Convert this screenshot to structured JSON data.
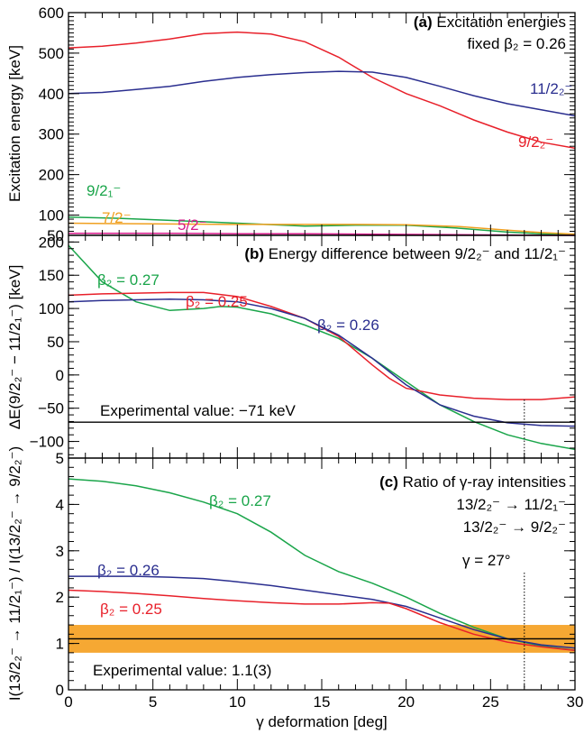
{
  "colors": {
    "red": "#e8202a",
    "blue": "#2a2e8f",
    "green": "#1aa54a",
    "orange": "#f0a020",
    "magenta": "#d6198a",
    "band": "#f6a833"
  },
  "xaxis": {
    "label": "γ deformation [deg]",
    "ticks": [
      "0",
      "5",
      "10",
      "15",
      "20",
      "25",
      "30"
    ]
  },
  "chart_data": [
    {
      "type": "line",
      "panel": "a",
      "title": "Excitation energies",
      "title_prefix": "(a)",
      "subtitle": "fixed β₂ = 0.26",
      "ylabel": "Excitation energy [keV]",
      "xlim": [
        0,
        30
      ],
      "ylim": [
        50,
        600
      ],
      "yticks": [
        "600",
        "500",
        "400",
        "300",
        "200",
        "100",
        "50"
      ],
      "series": [
        {
          "name": "9/2₂⁻",
          "color": "#e8202a",
          "x": [
            0,
            2,
            4,
            6,
            8,
            10,
            12,
            14,
            16,
            18,
            20,
            22,
            24,
            26,
            28,
            30
          ],
          "y": [
            513,
            517,
            525,
            535,
            548,
            552,
            547,
            528,
            490,
            440,
            400,
            370,
            335,
            305,
            280,
            265
          ]
        },
        {
          "name": "11/2₂⁻",
          "color": "#2a2e8f",
          "x": [
            0,
            2,
            4,
            6,
            8,
            10,
            12,
            14,
            16,
            18,
            20,
            22,
            24,
            26,
            28,
            30
          ],
          "y": [
            400,
            403,
            410,
            418,
            430,
            440,
            447,
            452,
            455,
            453,
            440,
            418,
            395,
            375,
            360,
            345
          ]
        },
        {
          "name": "9/2₁⁻",
          "color": "#1aa54a",
          "x": [
            0,
            3,
            6,
            10,
            14,
            17,
            20,
            23,
            26,
            28,
            30
          ],
          "y": [
            95,
            92,
            87,
            80,
            73,
            75,
            75,
            68,
            58,
            54,
            52
          ]
        },
        {
          "name": "7/2⁻",
          "color": "#f0a020",
          "x": [
            0,
            3,
            6,
            10,
            14,
            17,
            20,
            23,
            26,
            28,
            30
          ],
          "y": [
            80,
            79,
            78,
            77,
            77,
            77,
            76,
            72,
            63,
            57,
            53
          ]
        },
        {
          "name": "5/2⁻",
          "color": "#d6198a",
          "x": [
            0,
            3,
            6,
            10,
            14,
            18,
            22,
            26,
            28,
            30
          ],
          "y": [
            55,
            55,
            55,
            54,
            54,
            53,
            52,
            51,
            50,
            50
          ]
        }
      ]
    },
    {
      "type": "line",
      "panel": "b",
      "title": "Energy difference between 9/2₂⁻ and 11/2₁⁻",
      "title_prefix": "(b)",
      "ylabel": "ΔE(9/2₂⁻ − 11/2₁⁻) [keV]",
      "xlim": [
        0,
        30
      ],
      "ylim": [
        -125,
        210
      ],
      "yticks": [
        "200",
        "150",
        "100",
        "50",
        "0",
        "−50",
        "−100"
      ],
      "reference_line": {
        "y": -71,
        "label": "Experimental value: −71 keV"
      },
      "series": [
        {
          "name": "β₂ = 0.27",
          "color": "#1aa54a",
          "x": [
            0,
            2,
            4,
            6,
            8,
            9,
            10,
            12,
            14,
            16,
            18,
            20,
            22,
            24,
            26,
            28,
            30
          ],
          "y": [
            195,
            140,
            110,
            97,
            100,
            103,
            102,
            92,
            75,
            55,
            25,
            -10,
            -45,
            -70,
            -90,
            -103,
            -112
          ]
        },
        {
          "name": "β₂ = 0.25",
          "color": "#e8202a",
          "x": [
            0,
            2,
            4,
            6,
            8,
            10,
            12,
            14,
            16,
            18,
            19,
            20,
            22,
            24,
            26,
            28,
            30
          ],
          "y": [
            120,
            122,
            123,
            124,
            124,
            118,
            103,
            85,
            58,
            15,
            -5,
            -20,
            -30,
            -35,
            -37,
            -37,
            -33
          ]
        },
        {
          "name": "β₂ = 0.26",
          "color": "#2a2e8f",
          "x": [
            0,
            2,
            4,
            6,
            8,
            10,
            12,
            14,
            16,
            18,
            20,
            22,
            24,
            26,
            28,
            30
          ],
          "y": [
            110,
            112,
            113,
            114,
            113,
            110,
            100,
            85,
            60,
            25,
            -15,
            -45,
            -62,
            -72,
            -76,
            -77
          ]
        }
      ]
    },
    {
      "type": "line",
      "panel": "c",
      "title": "Ratio of γ-ray intensities",
      "title_prefix": "(c)",
      "subtitle_lines": [
        "13/2₂⁻ → 11/2₁⁻",
        "13/2₂⁻ → 9/2₂⁻"
      ],
      "ylabel": "I(13/2₂⁻ → 11/2₁⁻) / I(13/2₂⁻ → 9/2₂⁻)",
      "xlim": [
        0,
        30
      ],
      "ylim": [
        0,
        5
      ],
      "yticks": [
        "5",
        "4",
        "3",
        "2",
        "1",
        "0"
      ],
      "reference_line": {
        "y": 1.1,
        "label": "Experimental value: 1.1(3)"
      },
      "band": [
        0.8,
        1.4
      ],
      "vline": {
        "x": 27,
        "label": "γ = 27°"
      },
      "series": [
        {
          "name": "β₂ = 0.27",
          "color": "#1aa54a",
          "x": [
            0,
            2,
            4,
            6,
            8,
            10,
            12,
            14,
            16,
            18,
            20,
            22,
            24,
            26,
            28,
            30
          ],
          "y": [
            4.55,
            4.5,
            4.4,
            4.25,
            4.05,
            3.8,
            3.4,
            2.9,
            2.55,
            2.3,
            2.0,
            1.65,
            1.35,
            1.1,
            0.95,
            0.85
          ]
        },
        {
          "name": "β₂ = 0.26",
          "color": "#2a2e8f",
          "x": [
            0,
            2,
            4,
            6,
            8,
            10,
            12,
            14,
            16,
            18,
            20,
            22,
            24,
            26,
            28,
            30
          ],
          "y": [
            2.45,
            2.45,
            2.45,
            2.43,
            2.4,
            2.33,
            2.25,
            2.15,
            2.05,
            1.95,
            1.8,
            1.55,
            1.3,
            1.1,
            0.97,
            0.9
          ]
        },
        {
          "name": "β₂ = 0.25",
          "color": "#e8202a",
          "x": [
            0,
            2,
            4,
            6,
            8,
            10,
            12,
            14,
            16,
            18,
            19,
            20,
            22,
            24,
            26,
            28,
            30
          ],
          "y": [
            2.15,
            2.12,
            2.08,
            2.03,
            1.97,
            1.92,
            1.88,
            1.85,
            1.85,
            1.88,
            1.87,
            1.75,
            1.45,
            1.2,
            1.03,
            0.93,
            0.85
          ]
        }
      ]
    }
  ],
  "labels": {
    "a_9_2_2": "9/2₂⁻",
    "a_11_2_2": "11/2₂⁻",
    "a_9_2_1": "9/2₁⁻",
    "a_7_2": "7/2⁻",
    "a_5_2": "5/2⁻",
    "b_027": "β₂ = 0.27",
    "b_025": "β₂ = 0.25",
    "b_026": "β₂ = 0.26",
    "c_027": "β₂ = 0.27",
    "c_026": "β₂ = 0.26",
    "c_025": "β₂ = 0.25"
  }
}
